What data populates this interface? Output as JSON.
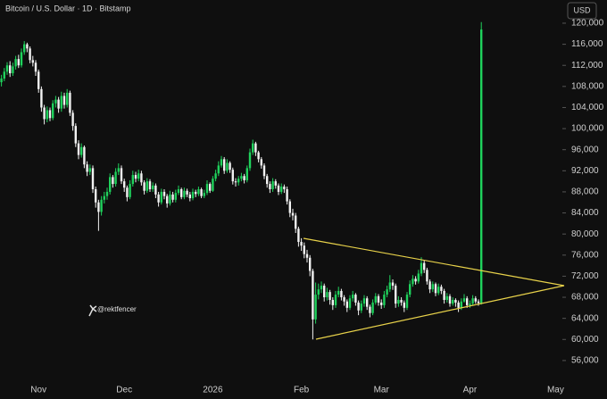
{
  "chart_data": {
    "type": "candlestick",
    "title": "Bitcoin / U.S. Dollar · 1D · Bitstamp",
    "currency": "USD",
    "watermark": "@rektfencer",
    "up_color": "#1fd25c",
    "down_color": "#f2f2f2",
    "categories": [
      null,
      null,
      null,
      null,
      null,
      null,
      null,
      null,
      null,
      null,
      null,
      null,
      null,
      "Nov",
      null,
      null,
      null,
      null,
      null,
      null,
      null,
      null,
      null,
      null,
      null,
      null,
      null,
      null,
      null,
      null,
      null,
      null,
      null,
      null,
      null,
      null,
      null,
      null,
      null,
      null,
      null,
      null,
      null,
      "Dec",
      null,
      null,
      null,
      null,
      null,
      null,
      null,
      null,
      null,
      null,
      null,
      null,
      null,
      null,
      null,
      null,
      null,
      null,
      null,
      null,
      null,
      null,
      null,
      null,
      null,
      null,
      null,
      null,
      null,
      null,
      "2026",
      null,
      null,
      null,
      null,
      null,
      null,
      null,
      null,
      null,
      null,
      null,
      null,
      null,
      null,
      null,
      null,
      null,
      null,
      null,
      null,
      null,
      null,
      null,
      null,
      null,
      null,
      null,
      null,
      null,
      null,
      "Feb",
      null,
      null,
      null,
      null,
      null,
      null,
      null,
      null,
      null,
      null,
      null,
      null,
      null,
      null,
      null,
      null,
      null,
      null,
      null,
      null,
      null,
      null,
      null,
      null,
      null,
      null,
      null,
      "Mar",
      null,
      null,
      null,
      null,
      null,
      null,
      null,
      null,
      null,
      null,
      null,
      null,
      null,
      null,
      null,
      null,
      null,
      null,
      null,
      null,
      null,
      null,
      null,
      null,
      null,
      null,
      null,
      null,
      null,
      null,
      "Apr",
      null,
      null,
      null,
      null,
      null,
      null,
      null,
      null,
      null,
      null,
      null,
      null,
      null,
      null,
      null,
      null,
      null,
      null,
      null,
      null,
      null,
      null,
      null,
      null,
      null,
      null,
      null,
      null,
      null,
      "May"
    ],
    "open": [
      108800,
      109500,
      110800,
      112000,
      110500,
      111800,
      113200,
      112000,
      114500,
      116000,
      115200,
      113000,
      112500,
      110800,
      107500,
      104000,
      101800,
      103500,
      102000,
      104800,
      105500,
      103800,
      106200,
      104500,
      106800,
      103000,
      100500,
      97200,
      95000,
      96500,
      93200,
      91800,
      92500,
      88500,
      86000,
      84200,
      86500,
      87200,
      88000,
      90800,
      89500,
      91800,
      92500,
      90000,
      88800,
      87000,
      89500,
      91200,
      90500,
      91500,
      89800,
      88200,
      90000,
      88500,
      89200,
      87500,
      86000,
      88000,
      87200,
      85800,
      87500,
      86500,
      87800,
      88500,
      87000,
      88200,
      87500,
      86800,
      88000,
      87600,
      88500,
      87200,
      87800,
      89500,
      88200,
      90500,
      91500,
      93000,
      94200,
      92000,
      93500,
      92200,
      90000,
      89800,
      90500,
      91000,
      90200,
      92500,
      95500,
      97200,
      95500,
      94200,
      93000,
      91000,
      89500,
      88500,
      90000,
      89200,
      88000,
      89000,
      88500,
      86200,
      84000,
      83500,
      81000,
      78500,
      77800,
      76200,
      75500,
      73000,
      63800,
      68500,
      69500,
      70200,
      68000,
      69000,
      67500,
      66500,
      68500,
      69200,
      68000,
      67200,
      66000,
      67800,
      68500,
      67000,
      65500,
      66800,
      67800,
      66200,
      65000,
      67000,
      68200,
      67000,
      66500,
      68500,
      69500,
      70800,
      70200,
      66800,
      67500,
      67000,
      66000,
      68500,
      70500,
      71500,
      71000,
      72500,
      74500,
      73200,
      71000,
      69500,
      70500,
      68800,
      70000,
      69200,
      67500,
      68200,
      66800,
      67500,
      67000,
      66000,
      67200,
      67800,
      66500,
      66800,
      67800,
      67200,
      66900,
      null,
      null,
      null,
      null,
      null,
      null,
      null,
      null,
      null,
      null,
      null,
      null,
      null,
      null,
      null,
      null,
      null,
      null,
      null,
      null,
      null,
      null,
      null,
      null,
      null,
      null
    ],
    "high": [
      110200,
      111500,
      112600,
      112800,
      112500,
      113800,
      114000,
      115200,
      116600,
      116300,
      115600,
      113800,
      113000,
      111200,
      108000,
      104500,
      104200,
      104000,
      105400,
      106200,
      106000,
      107000,
      106800,
      107500,
      107200,
      103500,
      101000,
      97800,
      97200,
      96800,
      93800,
      93200,
      93000,
      89000,
      86500,
      87200,
      88000,
      88800,
      91500,
      91200,
      92500,
      93400,
      93000,
      90500,
      89200,
      90200,
      92000,
      91800,
      92200,
      92000,
      90200,
      90600,
      90400,
      89800,
      89600,
      88000,
      88600,
      88500,
      87600,
      88200,
      88000,
      88400,
      89200,
      88800,
      88800,
      88600,
      88000,
      88600,
      88400,
      89000,
      88800,
      88400,
      90200,
      89800,
      91000,
      92200,
      93800,
      94800,
      94600,
      94200,
      93800,
      92600,
      90600,
      91000,
      91600,
      91400,
      93000,
      96200,
      97900,
      97500,
      95800,
      94600,
      93400,
      91400,
      90000,
      90600,
      90400,
      89600,
      89600,
      89400,
      89000,
      86600,
      84800,
      84000,
      81400,
      79200,
      78400,
      77000,
      76000,
      73400,
      70800,
      70600,
      71000,
      70600,
      69800,
      69400,
      68000,
      69200,
      70000,
      69600,
      68400,
      67600,
      68400,
      69200,
      68800,
      67400,
      67400,
      68400,
      68200,
      66600,
      67600,
      68800,
      68600,
      67600,
      69200,
      70200,
      72200,
      71400,
      70600,
      68200,
      68000,
      67400,
      69000,
      71200,
      72200,
      72000,
      73200,
      75600,
      75000,
      73600,
      71400,
      71000,
      70800,
      70600,
      70400,
      69600,
      68800,
      68600,
      68000,
      67800,
      67400,
      67800,
      68600,
      68200,
      67400,
      68400,
      68200,
      67600,
      120200,
      null,
      null,
      null,
      null,
      null,
      null,
      null,
      null,
      null,
      null,
      null,
      null,
      null,
      null,
      null,
      null,
      null,
      null,
      null,
      null,
      null,
      null,
      null,
      null,
      null,
      null
    ],
    "low": [
      108000,
      109000,
      110200,
      109800,
      110000,
      111200,
      111500,
      111600,
      114000,
      114500,
      112400,
      111800,
      110000,
      106800,
      103200,
      100800,
      101200,
      101400,
      101600,
      104000,
      103000,
      103200,
      103800,
      104000,
      102400,
      99600,
      96500,
      94200,
      94500,
      92500,
      91000,
      91200,
      87800,
      85000,
      80600,
      83500,
      85800,
      86500,
      87500,
      88800,
      89000,
      91200,
      89500,
      88000,
      86200,
      86600,
      89000,
      89800,
      90000,
      89200,
      87500,
      87800,
      88000,
      88000,
      86800,
      85200,
      85600,
      86600,
      85000,
      85400,
      86000,
      86000,
      87400,
      86600,
      86600,
      87000,
      86200,
      86400,
      87000,
      87200,
      86800,
      86800,
      87400,
      87800,
      88000,
      90000,
      91000,
      92600,
      91400,
      91600,
      91600,
      89400,
      89000,
      89200,
      90000,
      89600,
      89800,
      92000,
      95000,
      94800,
      93600,
      92400,
      90400,
      88800,
      87800,
      88000,
      88600,
      87400,
      87600,
      87800,
      85600,
      83200,
      82600,
      80200,
      77600,
      76800,
      75400,
      74600,
      72000,
      60000,
      63000,
      67600,
      68800,
      67200,
      67400,
      66600,
      65600,
      66000,
      68000,
      67400,
      66400,
      65200,
      65600,
      67200,
      66400,
      64600,
      65000,
      66200,
      65600,
      64200,
      64600,
      66600,
      66400,
      65800,
      66000,
      68000,
      69000,
      69400,
      66000,
      66200,
      66400,
      65200,
      65600,
      68000,
      70000,
      70400,
      70600,
      72000,
      72600,
      70400,
      68800,
      69000,
      68200,
      68400,
      68600,
      66800,
      67000,
      66200,
      66400,
      66200,
      65200,
      65600,
      67000,
      66000,
      66000,
      66400,
      66800,
      66400,
      66600,
      null,
      null,
      null,
      null,
      null,
      null,
      null,
      null,
      null,
      null,
      null,
      null,
      null,
      null,
      null,
      null,
      null,
      null,
      null,
      null,
      null,
      null,
      null,
      null,
      null,
      null
    ],
    "close": [
      109500,
      110800,
      112000,
      110500,
      111800,
      113200,
      112000,
      114500,
      116000,
      115200,
      113000,
      112500,
      110800,
      107500,
      104000,
      101800,
      103500,
      102000,
      104800,
      105500,
      103800,
      106200,
      104500,
      106800,
      103000,
      100500,
      97200,
      95000,
      96500,
      93200,
      91800,
      92500,
      88500,
      86000,
      84200,
      86500,
      87200,
      88000,
      90800,
      89500,
      91800,
      92500,
      90000,
      88800,
      87000,
      89500,
      91200,
      90500,
      91500,
      89800,
      88200,
      90000,
      88500,
      89200,
      87500,
      86000,
      88000,
      87200,
      85800,
      87500,
      86500,
      87800,
      88500,
      87000,
      88200,
      87500,
      86800,
      88000,
      87600,
      88500,
      87200,
      87800,
      89500,
      88200,
      90500,
      91500,
      93000,
      94200,
      92000,
      93500,
      92200,
      90000,
      89800,
      90500,
      91000,
      90200,
      92500,
      95500,
      97200,
      95500,
      94200,
      93000,
      91000,
      89500,
      88500,
      90000,
      89200,
      88000,
      89000,
      88500,
      86200,
      84000,
      83500,
      81000,
      78500,
      77800,
      76200,
      75500,
      73000,
      63800,
      68500,
      69500,
      70200,
      68000,
      69000,
      67500,
      66500,
      68500,
      69200,
      68000,
      67200,
      66000,
      67800,
      68500,
      67000,
      65500,
      66800,
      67800,
      66200,
      65000,
      67000,
      68200,
      67000,
      66500,
      68500,
      69500,
      70800,
      70200,
      66800,
      67500,
      67000,
      66000,
      68500,
      70500,
      71500,
      71000,
      72500,
      74500,
      73200,
      71000,
      69500,
      70500,
      68800,
      70000,
      69200,
      67500,
      68200,
      66800,
      67500,
      67000,
      66000,
      67200,
      67800,
      66500,
      66800,
      67800,
      67200,
      66900,
      118800,
      null,
      null,
      null,
      null,
      null,
      null,
      null,
      null,
      null,
      null,
      null,
      null,
      null,
      null,
      null,
      null,
      null,
      null,
      null,
      null,
      null,
      null,
      null,
      null,
      null,
      null
    ],
    "ylim": [
      48700,
      124400
    ],
    "yticks": [
      {
        "value": 56000,
        "label": "56,000"
      },
      {
        "value": 60000,
        "label": "60,000"
      },
      {
        "value": 64000,
        "label": "64,000"
      },
      {
        "value": 68000,
        "label": "68,000"
      },
      {
        "value": 72000,
        "label": "72,000"
      },
      {
        "value": 76000,
        "label": "76,000"
      },
      {
        "value": 80000,
        "label": "80,000"
      },
      {
        "value": 84000,
        "label": "84,000"
      },
      {
        "value": 88000,
        "label": "88,000"
      },
      {
        "value": 92000,
        "label": "92,000"
      },
      {
        "value": 96000,
        "label": "96,000"
      },
      {
        "value": 100000,
        "label": "100,000"
      },
      {
        "value": 104000,
        "label": "104,000"
      },
      {
        "value": 108000,
        "label": "108,000"
      },
      {
        "value": 112000,
        "label": "112,000"
      },
      {
        "value": 116000,
        "label": "116,000"
      },
      {
        "value": 120000,
        "label": "120,000"
      }
    ]
  }
}
